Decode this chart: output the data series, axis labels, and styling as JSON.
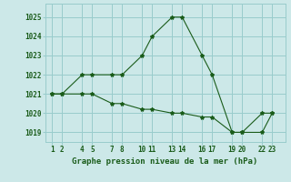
{
  "background_color": "#cce8e8",
  "grid_color": "#99cccc",
  "line_color": "#1a5c1a",
  "x_tick_positions": [
    1,
    2,
    4,
    5,
    7,
    8,
    10,
    11,
    13,
    14,
    16,
    17,
    19,
    20,
    22,
    23
  ],
  "x_ticks_labels": [
    "1",
    "2",
    "4",
    "5",
    "7",
    "8",
    "10",
    "11",
    "13",
    "14",
    "16",
    "17",
    "19",
    "20",
    "22",
    "23"
  ],
  "line1_x": [
    1,
    2,
    4,
    5,
    7,
    8,
    10,
    11,
    13,
    14,
    16,
    17,
    19,
    20,
    22,
    23
  ],
  "line1_y": [
    1021,
    1021,
    1022,
    1022,
    1022,
    1022,
    1023,
    1024,
    1025,
    1025,
    1023,
    1022,
    1019,
    1019,
    1019,
    1020
  ],
  "line2_x": [
    1,
    2,
    4,
    5,
    7,
    8,
    10,
    11,
    13,
    14,
    16,
    17,
    19,
    20,
    22,
    23
  ],
  "line2_y": [
    1021,
    1021,
    1021,
    1021,
    1020.5,
    1020.5,
    1020.2,
    1020.2,
    1020,
    1020,
    1019.8,
    1019.8,
    1019,
    1019,
    1020,
    1020
  ],
  "ylim": [
    1018.5,
    1025.7
  ],
  "yticks": [
    1019,
    1020,
    1021,
    1022,
    1023,
    1024,
    1025
  ],
  "xlim": [
    0.3,
    24.3
  ],
  "xlabel": "Graphe pression niveau de la mer (hPa)",
  "tick_fontsize": 5.5,
  "label_fontsize": 6.5
}
